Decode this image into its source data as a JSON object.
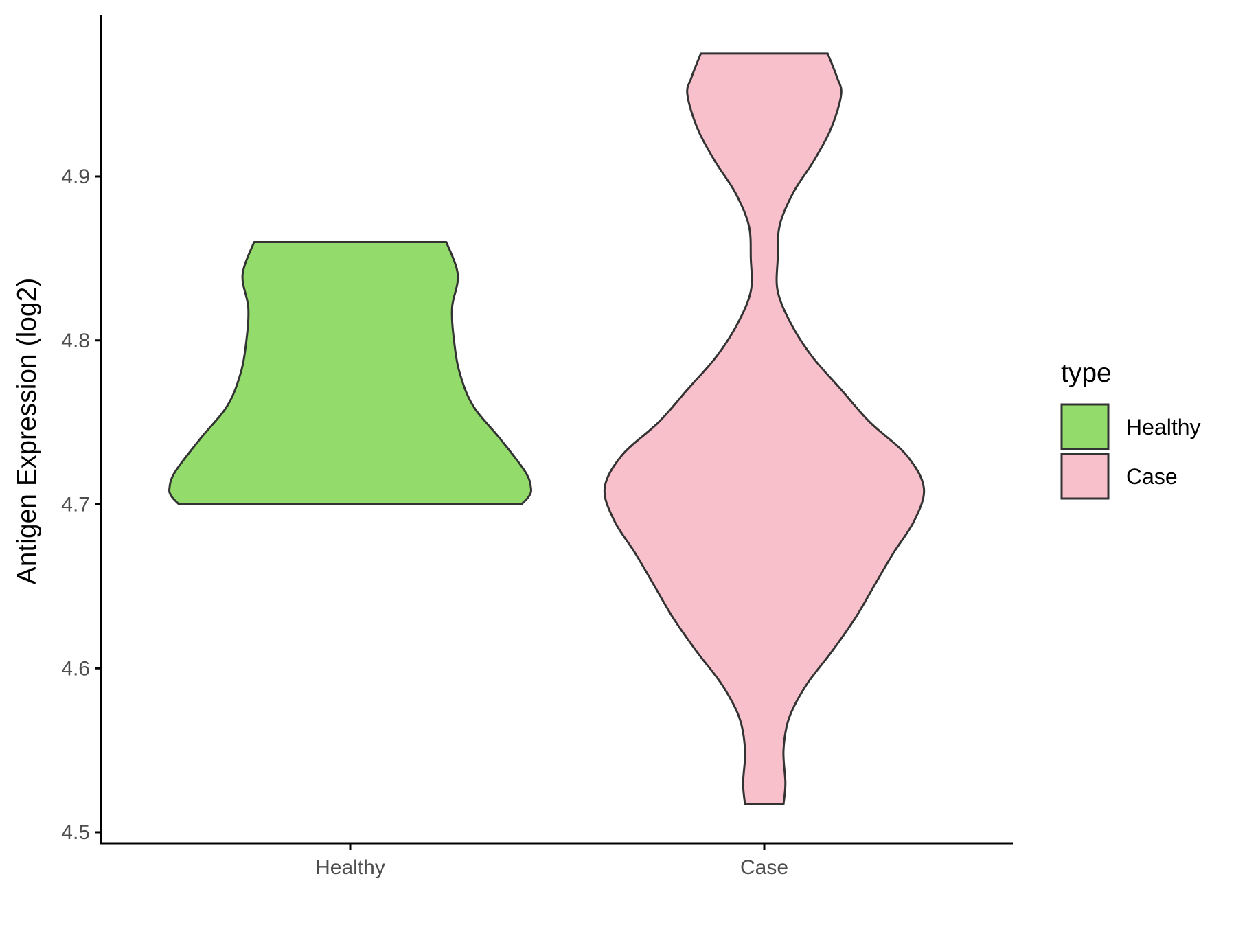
{
  "chart_data": {
    "type": "violin",
    "ylabel": "Antigen Expression (log2)",
    "xlabel": "",
    "categories": [
      "Healthy",
      "Case"
    ],
    "ylim": [
      4.5,
      4.99
    ],
    "yticks": [
      4.5,
      4.6,
      4.7,
      4.8,
      4.9
    ],
    "ytick_labels": [
      "4.5",
      "4.6",
      "4.7",
      "4.8",
      "4.9"
    ],
    "grid": false,
    "legend": {
      "title": "type",
      "position": "right",
      "entries": [
        {
          "label": "Healthy",
          "color": "#93dc6b"
        },
        {
          "label": "Case",
          "color": "#f8c0cb"
        }
      ]
    },
    "series": [
      {
        "category": "Healthy",
        "color": "#93dc6b",
        "range": [
          4.7,
          4.86
        ],
        "density_profile": [
          [
            4.7,
            0.89
          ],
          [
            4.705,
            0.93
          ],
          [
            4.71,
            0.94
          ],
          [
            4.72,
            0.91
          ],
          [
            4.74,
            0.78
          ],
          [
            4.76,
            0.64
          ],
          [
            4.78,
            0.57
          ],
          [
            4.8,
            0.54
          ],
          [
            4.82,
            0.53
          ],
          [
            4.84,
            0.56
          ],
          [
            4.86,
            0.5
          ]
        ]
      },
      {
        "category": "Case",
        "color": "#f8c0cb",
        "range": [
          4.517,
          4.975
        ],
        "density_profile": [
          [
            4.517,
            0.1
          ],
          [
            4.53,
            0.11
          ],
          [
            4.55,
            0.1
          ],
          [
            4.57,
            0.13
          ],
          [
            4.59,
            0.22
          ],
          [
            4.61,
            0.35
          ],
          [
            4.63,
            0.47
          ],
          [
            4.65,
            0.57
          ],
          [
            4.67,
            0.67
          ],
          [
            4.69,
            0.78
          ],
          [
            4.71,
            0.83
          ],
          [
            4.73,
            0.74
          ],
          [
            4.75,
            0.55
          ],
          [
            4.77,
            0.4
          ],
          [
            4.79,
            0.25
          ],
          [
            4.81,
            0.14
          ],
          [
            4.83,
            0.07
          ],
          [
            4.85,
            0.07
          ],
          [
            4.87,
            0.08
          ],
          [
            4.89,
            0.15
          ],
          [
            4.91,
            0.26
          ],
          [
            4.93,
            0.35
          ],
          [
            4.95,
            0.4
          ],
          [
            4.96,
            0.38
          ],
          [
            4.975,
            0.33
          ]
        ]
      }
    ]
  },
  "colors": {
    "outline": "#333333",
    "axis": "#000000",
    "tick_label": "#4d4d4d"
  }
}
